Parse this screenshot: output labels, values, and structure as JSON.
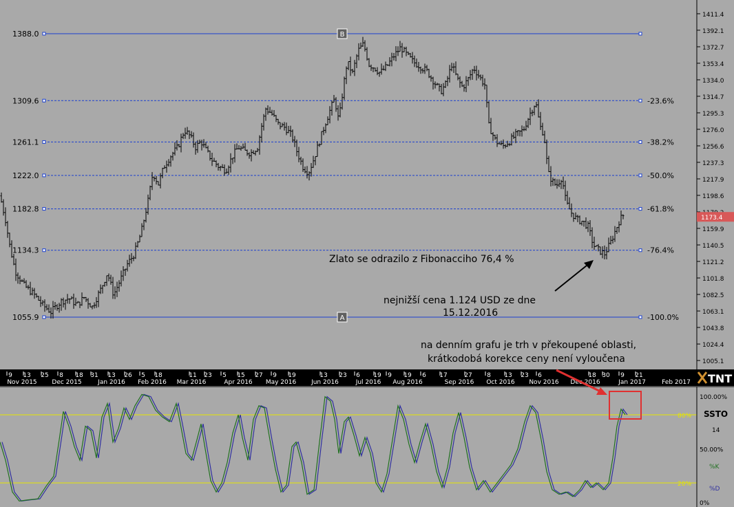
{
  "chart_data": [
    {
      "type": "ohlc",
      "instrument_note": "Gold daily",
      "fib_levels": [
        {
          "value": 1388.0,
          "label": "1388.0",
          "pct": ""
        },
        {
          "value": 1309.6,
          "label": "1309.6",
          "pct": "-23.6%"
        },
        {
          "value": 1261.1,
          "label": "1261.1",
          "pct": "-38.2%"
        },
        {
          "value": 1222.0,
          "label": "1222.0",
          "pct": "-50.0%"
        },
        {
          "value": 1182.8,
          "label": "1182.8",
          "pct": "-61.8%"
        },
        {
          "value": 1134.3,
          "label": "1134.3",
          "pct": "-76.4%"
        },
        {
          "value": 1055.9,
          "label": "1055.9",
          "pct": "-100.0%"
        }
      ],
      "point_labels": {
        "top": "B",
        "bottom": "A"
      },
      "y_ticks": [
        "1411.4",
        "1392.1",
        "1372.7",
        "1353.4",
        "1334.0",
        "1314.7",
        "1295.3",
        "1276.0",
        "1256.6",
        "1237.3",
        "1217.9",
        "1198.6",
        "1179.2",
        "1159.9",
        "1140.5",
        "1121.2",
        "1101.8",
        "1082.5",
        "1063.1",
        "1043.8",
        "1024.4",
        "1005.1"
      ],
      "ylim": [
        995.0,
        1420.0
      ],
      "last_price": "1173.4",
      "x_day_ticks": [
        "9",
        "13",
        "25",
        "8",
        "18",
        "31",
        "13",
        "26",
        "5",
        "18",
        "11",
        "23",
        "5",
        "15",
        "27",
        "9",
        "19",
        "13",
        "23",
        "6",
        "19",
        "9",
        "19",
        "6",
        "17",
        "27",
        "8",
        "13",
        "23",
        "6",
        "18",
        "30",
        "9",
        "21"
      ],
      "x_month_labels": [
        "Nov 2015",
        "Dec 2015",
        "Jan 2016",
        "Feb 2016",
        "Mar 2016",
        "Apr 2016",
        "May 2016",
        "Jun 2016",
        "Jul 2016",
        "Aug 2016",
        "Sep 2016",
        "Oct 2016",
        "Nov 2016",
        "Dec 2016",
        "Jan 2017",
        "Feb 2017"
      ],
      "price_path": [
        [
          0,
          1198
        ],
        [
          8,
          1170
        ],
        [
          14,
          1140
        ],
        [
          22,
          1110
        ],
        [
          35,
          1093
        ],
        [
          50,
          1082
        ],
        [
          62,
          1070
        ],
        [
          74,
          1062
        ],
        [
          88,
          1074
        ],
        [
          100,
          1078
        ],
        [
          112,
          1070
        ],
        [
          122,
          1079
        ],
        [
          134,
          1068
        ],
        [
          146,
          1088
        ],
        [
          156,
          1108
        ],
        [
          165,
          1082
        ],
        [
          175,
          1100
        ],
        [
          185,
          1118
        ],
        [
          195,
          1130
        ],
        [
          205,
          1155
        ],
        [
          215,
          1192
        ],
        [
          222,
          1225
        ],
        [
          230,
          1212
        ],
        [
          238,
          1232
        ],
        [
          248,
          1245
        ],
        [
          258,
          1255
        ],
        [
          268,
          1275
        ],
        [
          276,
          1268
        ],
        [
          284,
          1255
        ],
        [
          292,
          1262
        ],
        [
          300,
          1250
        ],
        [
          308,
          1240
        ],
        [
          318,
          1232
        ],
        [
          328,
          1228
        ],
        [
          338,
          1245
        ],
        [
          346,
          1255
        ],
        [
          356,
          1250
        ],
        [
          364,
          1248
        ],
        [
          374,
          1255
        ],
        [
          380,
          1280
        ],
        [
          386,
          1300
        ],
        [
          394,
          1295
        ],
        [
          404,
          1282
        ],
        [
          414,
          1278
        ],
        [
          424,
          1268
        ],
        [
          432,
          1248
        ],
        [
          440,
          1232
        ],
        [
          448,
          1225
        ],
        [
          456,
          1242
        ],
        [
          464,
          1262
        ],
        [
          472,
          1282
        ],
        [
          480,
          1300
        ],
        [
          486,
          1312
        ],
        [
          492,
          1285
        ],
        [
          498,
          1322
        ],
        [
          504,
          1355
        ],
        [
          512,
          1342
        ],
        [
          520,
          1368
        ],
        [
          528,
          1376
        ],
        [
          536,
          1352
        ],
        [
          544,
          1348
        ],
        [
          552,
          1342
        ],
        [
          562,
          1350
        ],
        [
          572,
          1362
        ],
        [
          582,
          1372
        ],
        [
          592,
          1362
        ],
        [
          600,
          1355
        ],
        [
          610,
          1350
        ],
        [
          620,
          1344
        ],
        [
          630,
          1332
        ],
        [
          640,
          1320
        ],
        [
          648,
          1330
        ],
        [
          656,
          1352
        ],
        [
          664,
          1335
        ],
        [
          672,
          1325
        ],
        [
          680,
          1335
        ],
        [
          688,
          1348
        ],
        [
          696,
          1338
        ],
        [
          704,
          1328
        ],
        [
          710,
          1280
        ],
        [
          720,
          1262
        ],
        [
          730,
          1256
        ],
        [
          740,
          1262
        ],
        [
          750,
          1270
        ],
        [
          760,
          1275
        ],
        [
          770,
          1295
        ],
        [
          778,
          1308
        ],
        [
          784,
          1280
        ],
        [
          790,
          1270
        ],
        [
          796,
          1225
        ],
        [
          802,
          1215
        ],
        [
          808,
          1210
        ],
        [
          816,
          1220
        ],
        [
          822,
          1190
        ],
        [
          830,
          1178
        ],
        [
          838,
          1170
        ],
        [
          846,
          1168
        ],
        [
          854,
          1162
        ],
        [
          862,
          1140
        ],
        [
          870,
          1134
        ],
        [
          878,
          1130
        ],
        [
          886,
          1142
        ],
        [
          894,
          1158
        ],
        [
          900,
          1170
        ],
        [
          906,
          1176
        ]
      ]
    },
    {
      "type": "line",
      "indicator": "SSTO",
      "params": "14",
      "series": [
        {
          "name": "%K",
          "color": "#207020"
        },
        {
          "name": "%D",
          "color": "#3030a0"
        }
      ],
      "levels": [
        {
          "value": 80,
          "label": "80%"
        },
        {
          "value": 20,
          "label": "20%"
        }
      ],
      "ylim": [
        0,
        100
      ],
      "y_ticks": [
        "100.00%",
        "50.00%",
        "0%"
      ],
      "k_path": [
        [
          0,
          56
        ],
        [
          8,
          40
        ],
        [
          18,
          12
        ],
        [
          28,
          4
        ],
        [
          40,
          5
        ],
        [
          55,
          6
        ],
        [
          68,
          18
        ],
        [
          78,
          26
        ],
        [
          86,
          58
        ],
        [
          92,
          83
        ],
        [
          100,
          70
        ],
        [
          108,
          52
        ],
        [
          116,
          40
        ],
        [
          124,
          70
        ],
        [
          132,
          66
        ],
        [
          140,
          42
        ],
        [
          148,
          78
        ],
        [
          156,
          90
        ],
        [
          164,
          56
        ],
        [
          172,
          68
        ],
        [
          180,
          86
        ],
        [
          188,
          76
        ],
        [
          196,
          88
        ],
        [
          206,
          98
        ],
        [
          216,
          96
        ],
        [
          226,
          84
        ],
        [
          236,
          78
        ],
        [
          246,
          74
        ],
        [
          256,
          90
        ],
        [
          262,
          72
        ],
        [
          270,
          46
        ],
        [
          278,
          40
        ],
        [
          286,
          58
        ],
        [
          292,
          72
        ],
        [
          298,
          50
        ],
        [
          306,
          22
        ],
        [
          314,
          12
        ],
        [
          322,
          20
        ],
        [
          330,
          38
        ],
        [
          338,
          64
        ],
        [
          346,
          80
        ],
        [
          352,
          60
        ],
        [
          360,
          40
        ],
        [
          368,
          76
        ],
        [
          376,
          88
        ],
        [
          384,
          86
        ],
        [
          392,
          58
        ],
        [
          400,
          32
        ],
        [
          408,
          12
        ],
        [
          416,
          18
        ],
        [
          424,
          52
        ],
        [
          430,
          56
        ],
        [
          438,
          38
        ],
        [
          446,
          10
        ],
        [
          456,
          14
        ],
        [
          464,
          56
        ],
        [
          472,
          96
        ],
        [
          480,
          92
        ],
        [
          486,
          76
        ],
        [
          492,
          46
        ],
        [
          500,
          74
        ],
        [
          506,
          78
        ],
        [
          514,
          62
        ],
        [
          522,
          44
        ],
        [
          530,
          60
        ],
        [
          538,
          46
        ],
        [
          546,
          20
        ],
        [
          554,
          12
        ],
        [
          562,
          28
        ],
        [
          570,
          58
        ],
        [
          578,
          88
        ],
        [
          586,
          76
        ],
        [
          594,
          54
        ],
        [
          602,
          38
        ],
        [
          610,
          56
        ],
        [
          618,
          72
        ],
        [
          626,
          54
        ],
        [
          634,
          30
        ],
        [
          642,
          16
        ],
        [
          650,
          34
        ],
        [
          658,
          64
        ],
        [
          666,
          82
        ],
        [
          674,
          60
        ],
        [
          682,
          34
        ],
        [
          692,
          14
        ],
        [
          702,
          22
        ],
        [
          712,
          12
        ],
        [
          722,
          20
        ],
        [
          732,
          28
        ],
        [
          742,
          36
        ],
        [
          752,
          50
        ],
        [
          762,
          74
        ],
        [
          770,
          88
        ],
        [
          778,
          82
        ],
        [
          786,
          58
        ],
        [
          794,
          30
        ],
        [
          802,
          14
        ],
        [
          812,
          10
        ],
        [
          822,
          12
        ],
        [
          832,
          8
        ],
        [
          842,
          14
        ],
        [
          850,
          22
        ],
        [
          858,
          16
        ],
        [
          866,
          20
        ],
        [
          876,
          14
        ],
        [
          884,
          20
        ],
        [
          890,
          42
        ],
        [
          896,
          70
        ],
        [
          902,
          85
        ],
        [
          908,
          80
        ]
      ]
    }
  ],
  "annotations": {
    "fib_note": "Zlato se odrazilo z Fibonacciho 76,4 %",
    "low_note_1": "nejnižší cena 1.124 USD ze dne",
    "low_note_2": "15.12.2016",
    "osc_note_1": "na denním grafu je trh v překoupené oblasti,",
    "osc_note_2": "krátkodobá korekce ceny není vyloučena"
  },
  "brand": "TNT",
  "colors": {
    "background": "#a9a9a9",
    "fib_line": "#1a3fd0",
    "oscillator_level": "#e6e600",
    "highlight": "#e03030",
    "last_price_bg": "#d85858"
  }
}
